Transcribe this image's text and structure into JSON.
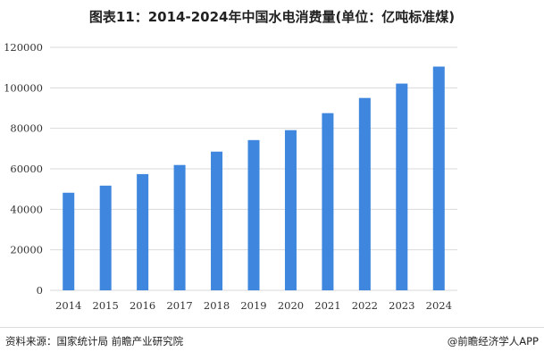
{
  "chart_data": {
    "type": "bar",
    "title": "图表11：2014-2024年中国水电消费量(单位：亿吨标准煤)",
    "categories": [
      "2014",
      "2015",
      "2016",
      "2017",
      "2018",
      "2019",
      "2020",
      "2021",
      "2022",
      "2023",
      "2024"
    ],
    "values": [
      48200,
      51700,
      57400,
      61900,
      68500,
      74200,
      79100,
      87500,
      95000,
      102100,
      110500
    ],
    "ylim": [
      0,
      120000
    ],
    "yticks": [
      "0",
      "20000",
      "40000",
      "60000",
      "80000",
      "100000",
      "120000"
    ],
    "grid": true,
    "bar_color": "#3f86de"
  },
  "footer": {
    "source": "资料来源：国家统计局 前瞻产业研究院",
    "brand": "@前瞻经济学人APP"
  }
}
